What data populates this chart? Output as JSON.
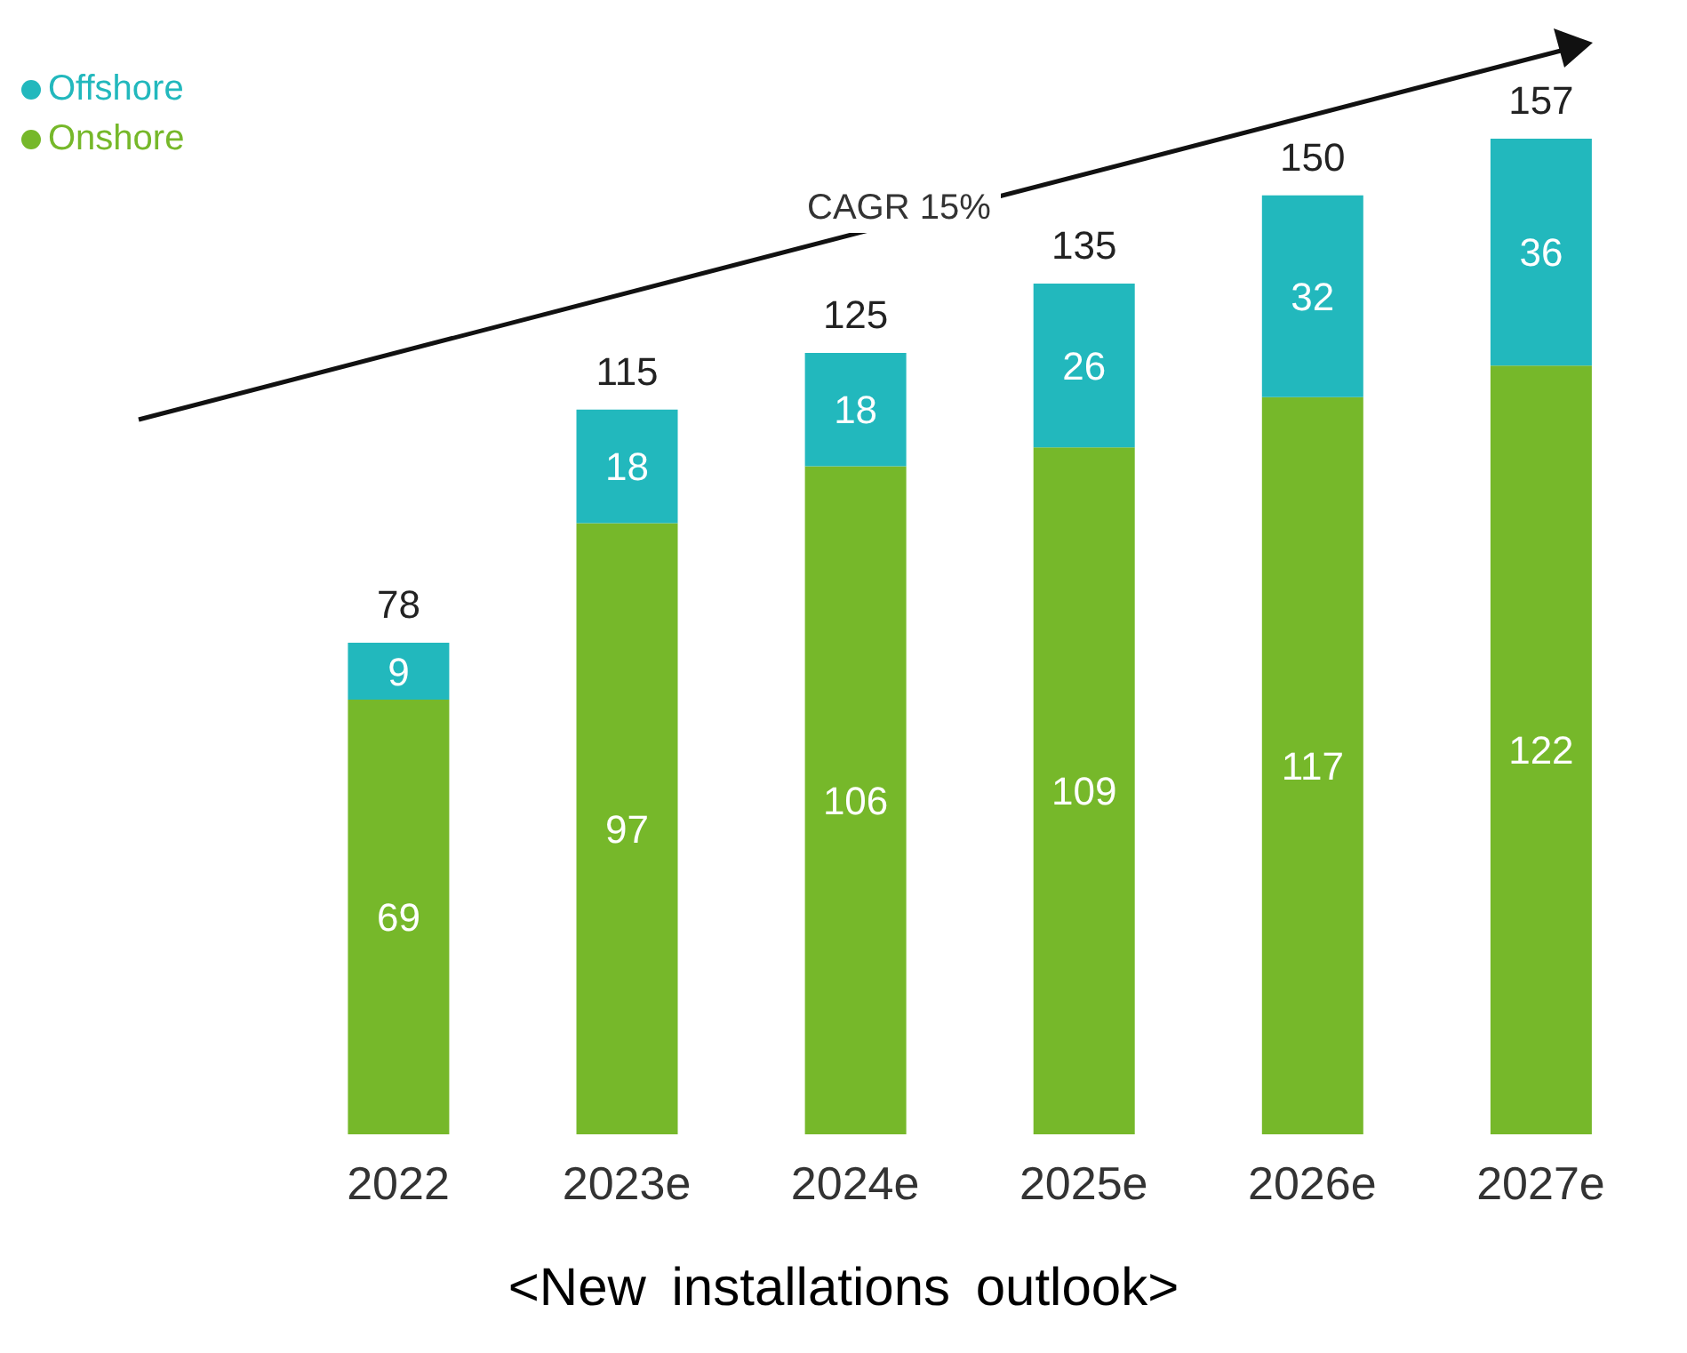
{
  "chart_data": {
    "type": "bar",
    "stacked": true,
    "categories": [
      "2022",
      "2023e",
      "2024e",
      "2025e",
      "2026e",
      "2027e"
    ],
    "series": [
      {
        "name": "Onshore",
        "color": "#76b82a",
        "values": [
          69,
          97,
          106,
          109,
          117,
          122
        ]
      },
      {
        "name": "Offshore",
        "color": "#22b8bd",
        "values": [
          9,
          18,
          18,
          26,
          32,
          36
        ]
      }
    ],
    "totals": [
      "78",
      "115",
      "125",
      "135",
      "150",
      "157"
    ],
    "data_labels": true,
    "legend": "top left",
    "grid": false,
    "annotations": [
      "CAGR 15%",
      "<New installations outlook>"
    ]
  }
}
